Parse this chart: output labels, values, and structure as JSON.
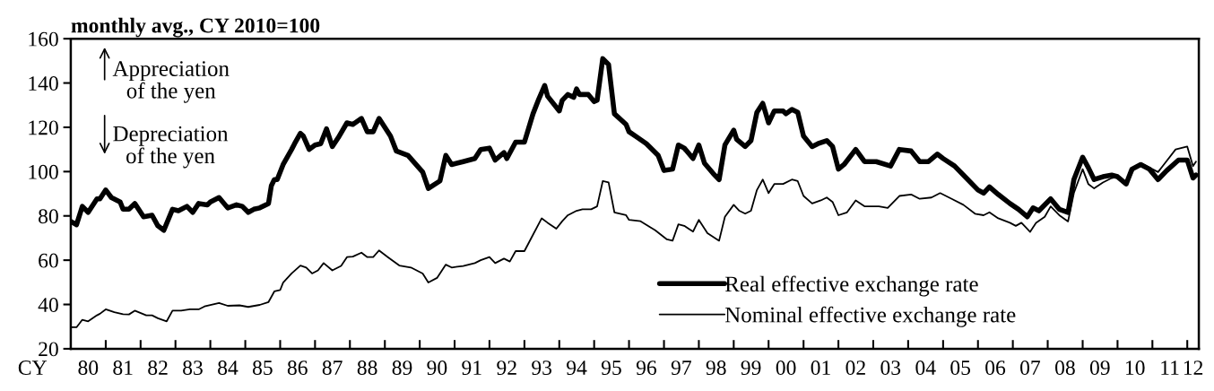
{
  "chart_data": {
    "type": "line",
    "subtitle": "monthly avg., CY 2010=100",
    "annotations": [
      "Appreciation\nof the yen",
      "Depreciation\nof the yen",
      "CY"
    ],
    "xlim": [
      "1980-01",
      "2012-05"
    ],
    "ylim": [
      20,
      160
    ],
    "yticks": [
      20,
      40,
      60,
      80,
      100,
      120,
      140,
      160
    ],
    "xticks": [
      {
        "value": "1981-01",
        "label": null
      },
      {
        "value": "1982-01",
        "label": null
      },
      {
        "value": "1983-01",
        "label": null
      },
      {
        "value": "1984-01",
        "label": null
      },
      {
        "value": "1985-01",
        "label": null
      },
      {
        "value": "1986-01",
        "label": null
      },
      {
        "value": "1987-01",
        "label": null
      },
      {
        "value": "1988-01",
        "label": null
      },
      {
        "value": "1989-01",
        "label": null
      },
      {
        "value": "1990-01",
        "label": null
      },
      {
        "value": "1991-01",
        "label": null
      },
      {
        "value": "1992-01",
        "label": null
      },
      {
        "value": "1993-01",
        "label": null
      },
      {
        "value": "1994-01",
        "label": null
      },
      {
        "value": "1995-01",
        "label": null
      },
      {
        "value": "1996-01",
        "label": null
      },
      {
        "value": "1997-01",
        "label": null
      },
      {
        "value": "1998-01",
        "label": null
      },
      {
        "value": "1999-01",
        "label": null
      },
      {
        "value": "2000-01",
        "label": null
      },
      {
        "value": "2001-01",
        "label": null
      },
      {
        "value": "2002-01",
        "label": null
      },
      {
        "value": "2003-01",
        "label": null
      },
      {
        "value": "2004-01",
        "label": null
      },
      {
        "value": "2005-01",
        "label": null
      },
      {
        "value": "2006-01",
        "label": null
      },
      {
        "value": "2007-01",
        "label": null
      },
      {
        "value": "2008-01",
        "label": null
      },
      {
        "value": "2009-01",
        "label": null
      },
      {
        "value": "2010-01",
        "label": null
      },
      {
        "value": "2011-01",
        "label": null
      },
      {
        "value": "2012-01",
        "label": null
      },
      {
        "value": "1980-07",
        "label": "80"
      },
      {
        "value": "1981-07",
        "label": "81"
      },
      {
        "value": "1982-07",
        "label": "82"
      },
      {
        "value": "1983-07",
        "label": "83"
      },
      {
        "value": "1984-07",
        "label": "84"
      },
      {
        "value": "1985-07",
        "label": "85"
      },
      {
        "value": "1986-07",
        "label": "86"
      },
      {
        "value": "1987-07",
        "label": "87"
      },
      {
        "value": "1988-07",
        "label": "88"
      },
      {
        "value": "1989-07",
        "label": "89"
      },
      {
        "value": "1990-07",
        "label": "90"
      },
      {
        "value": "1991-07",
        "label": "91"
      },
      {
        "value": "1992-07",
        "label": "92"
      },
      {
        "value": "1993-07",
        "label": "93"
      },
      {
        "value": "1994-07",
        "label": "94"
      },
      {
        "value": "1995-07",
        "label": "95"
      },
      {
        "value": "1996-07",
        "label": "96"
      },
      {
        "value": "1997-07",
        "label": "97"
      },
      {
        "value": "1998-07",
        "label": "98"
      },
      {
        "value": "1999-07",
        "label": "99"
      },
      {
        "value": "2000-07",
        "label": "00"
      },
      {
        "value": "2001-07",
        "label": "01"
      },
      {
        "value": "2002-07",
        "label": "02"
      },
      {
        "value": "2003-07",
        "label": "03"
      },
      {
        "value": "2004-07",
        "label": "04"
      },
      {
        "value": "2005-07",
        "label": "05"
      },
      {
        "value": "2006-07",
        "label": "06"
      },
      {
        "value": "2007-07",
        "label": "07"
      },
      {
        "value": "2008-07",
        "label": "08"
      },
      {
        "value": "2009-07",
        "label": "09"
      },
      {
        "value": "2010-07",
        "label": "10"
      },
      {
        "value": "2011-07",
        "label": "11"
      },
      {
        "value": "2012-03",
        "label": "12"
      }
    ],
    "grid": false,
    "legend": "bottom",
    "marker": "none",
    "line_style": "solid",
    "series": [
      {
        "name": "Real effective exchange rate",
        "color": "#000000",
        "x": [
          "1980-01",
          "1980-03",
          "1980-05",
          "1980-07",
          "1980-10",
          "1980-11",
          "1981-01",
          "1981-03",
          "1981-06",
          "1981-07",
          "1981-09",
          "1981-11",
          "1982-02",
          "1982-05",
          "1982-07",
          "1982-09",
          "1982-12",
          "1983-02",
          "1983-05",
          "1983-07",
          "1983-09",
          "1983-12",
          "1984-01",
          "1984-04",
          "1984-07",
          "1984-10",
          "1984-12",
          "1985-02",
          "1985-04",
          "1985-06",
          "1985-09",
          "1985-10",
          "1985-11",
          "1985-12",
          "1986-02",
          "1986-05",
          "1986-06",
          "1986-08",
          "1986-09",
          "1986-11",
          "1987-01",
          "1987-03",
          "1987-05",
          "1987-07",
          "1987-09",
          "1987-12",
          "1988-02",
          "1988-05",
          "1988-07",
          "1988-09",
          "1988-11",
          "1989-03",
          "1989-05",
          "1989-09",
          "1990-02",
          "1990-04",
          "1990-08",
          "1990-10",
          "1990-12",
          "1991-04",
          "1991-08",
          "1991-10",
          "1992-01",
          "1992-03",
          "1992-06",
          "1992-07",
          "1992-10",
          "1993-01",
          "1993-04",
          "1993-06",
          "1993-08",
          "1993-09",
          "1994-01",
          "1994-02",
          "1994-04",
          "1994-06",
          "1994-07",
          "1994-08",
          "1994-11",
          "1995-01",
          "1995-02",
          "1995-04",
          "1995-06",
          "1995-08",
          "1995-12",
          "1996-01",
          "1996-04",
          "1996-07",
          "1996-11",
          "1997-01",
          "1997-04",
          "1997-06",
          "1997-08",
          "1997-11",
          "1998-01",
          "1998-03",
          "1998-06",
          "1998-08",
          "1998-10",
          "1999-01",
          "1999-02",
          "1999-05",
          "1999-07",
          "1999-09",
          "1999-11",
          "2000-01",
          "2000-03",
          "2000-06",
          "2000-07",
          "2000-09",
          "2000-11",
          "2001-01",
          "2001-04",
          "2001-06",
          "2001-09",
          "2001-11",
          "2002-01",
          "2002-03",
          "2002-07",
          "2002-10",
          "2003-02",
          "2003-07",
          "2003-10",
          "2004-02",
          "2004-05",
          "2004-08",
          "2004-11",
          "2005-01",
          "2005-05",
          "2005-09",
          "2006-01",
          "2006-03",
          "2006-05",
          "2006-08",
          "2006-12",
          "2007-03",
          "2007-06",
          "2007-08",
          "2007-10",
          "2008-02",
          "2008-05",
          "2008-08",
          "2008-10",
          "2009-01",
          "2009-03",
          "2009-05",
          "2009-08",
          "2009-11",
          "2010-01",
          "2010-04",
          "2010-06",
          "2010-09",
          "2010-12",
          "2011-03",
          "2011-06",
          "2011-10",
          "2012-01",
          "2012-03",
          "2012-04"
        ],
        "values": [
          77.5,
          76,
          84.3,
          81.6,
          87.7,
          87.7,
          91.7,
          88.3,
          86.3,
          83,
          83,
          85.6,
          79.6,
          80.3,
          75.5,
          73.5,
          83,
          82.3,
          84.3,
          81.6,
          85.6,
          85,
          86.3,
          88.3,
          83.6,
          85,
          84.3,
          81.6,
          83,
          83.6,
          85.6,
          93.7,
          96.4,
          96.4,
          103.2,
          110,
          112.6,
          117.3,
          116,
          110,
          112,
          112.6,
          119.3,
          111.3,
          115.3,
          122,
          121.3,
          124,
          118,
          118,
          124,
          116,
          109.3,
          107.3,
          99.8,
          92.4,
          95.8,
          107.3,
          103.2,
          104.5,
          105.9,
          110,
          110.6,
          105.2,
          108.6,
          105.9,
          113.3,
          113.3,
          126.1,
          132.8,
          138.9,
          134,
          127.4,
          132.2,
          134.8,
          133.5,
          137.3,
          134.8,
          134.8,
          131.6,
          132.2,
          151,
          148.3,
          126.1,
          121.3,
          118,
          115.3,
          112.6,
          107.3,
          100.5,
          101.1,
          112,
          110.6,
          105.9,
          112,
          103.8,
          99.1,
          96.4,
          112,
          118.7,
          114.6,
          111.3,
          114,
          126.8,
          130.8,
          122,
          127.4,
          127.4,
          126.1,
          128.1,
          126.8,
          116,
          111.3,
          112.6,
          114,
          111.3,
          101.1,
          103.2,
          110,
          104.5,
          104.5,
          102.5,
          110,
          109.3,
          104.5,
          104.5,
          107.9,
          105.9,
          102.5,
          97.1,
          91.7,
          90.3,
          93.1,
          89.7,
          85.6,
          83,
          79.6,
          83.6,
          82.3,
          87.7,
          83,
          81.6,
          96.4,
          106.5,
          101.8,
          96.4,
          97.7,
          98.4,
          97.7,
          94.4,
          101.1,
          103.2,
          101.1,
          96.4,
          100.5,
          105.2,
          105.2,
          97.1,
          98.4
        ]
      },
      {
        "name": "Nominal effective exchange rate",
        "color": "#000000",
        "x": [
          "1980-01",
          "1980-03",
          "1980-05",
          "1980-07",
          "1980-10",
          "1980-11",
          "1981-01",
          "1981-04",
          "1981-07",
          "1981-09",
          "1981-11",
          "1982-03",
          "1982-05",
          "1982-07",
          "1982-10",
          "1982-12",
          "1983-03",
          "1983-06",
          "1983-09",
          "1983-11",
          "1984-01",
          "1984-04",
          "1984-07",
          "1984-11",
          "1985-02",
          "1985-06",
          "1985-09",
          "1985-11",
          "1986-01",
          "1986-02",
          "1986-05",
          "1986-08",
          "1986-10",
          "1986-12",
          "1987-02",
          "1987-04",
          "1987-07",
          "1987-10",
          "1987-12",
          "1988-02",
          "1988-05",
          "1988-07",
          "1988-09",
          "1988-11",
          "1989-02",
          "1989-06",
          "1989-10",
          "1990-02",
          "1990-04",
          "1990-07",
          "1990-10",
          "1990-12",
          "1991-04",
          "1991-08",
          "1991-10",
          "1992-01",
          "1992-03",
          "1992-06",
          "1992-08",
          "1992-10",
          "1993-01",
          "1993-04",
          "1993-07",
          "1993-09",
          "1993-12",
          "1994-02",
          "1994-04",
          "1994-07",
          "1994-09",
          "1994-12",
          "1995-02",
          "1995-04",
          "1995-06",
          "1995-08",
          "1995-12",
          "1996-01",
          "1996-05",
          "1996-10",
          "1997-02",
          "1997-04",
          "1997-06",
          "1997-08",
          "1997-11",
          "1998-01",
          "1998-04",
          "1998-08",
          "1998-10",
          "1999-01",
          "1999-03",
          "1999-05",
          "1999-07",
          "1999-09",
          "1999-11",
          "2000-01",
          "2000-03",
          "2000-06",
          "2000-09",
          "2000-11",
          "2001-01",
          "2001-04",
          "2001-07",
          "2001-09",
          "2001-11",
          "2002-01",
          "2002-04",
          "2002-07",
          "2002-10",
          "2003-03",
          "2003-06",
          "2003-10",
          "2004-02",
          "2004-05",
          "2004-09",
          "2004-12",
          "2005-04",
          "2005-08",
          "2005-12",
          "2006-03",
          "2006-05",
          "2006-08",
          "2006-12",
          "2007-02",
          "2007-04",
          "2007-07",
          "2007-09",
          "2007-12",
          "2008-02",
          "2008-05",
          "2008-08",
          "2008-10",
          "2009-01",
          "2009-03",
          "2009-05",
          "2009-08",
          "2009-11",
          "2010-01",
          "2010-04",
          "2010-07",
          "2010-09",
          "2010-12",
          "2011-03",
          "2011-05",
          "2011-09",
          "2012-01",
          "2012-03",
          "2012-04"
        ],
        "values": [
          29.7,
          29.7,
          33.1,
          32.4,
          35.1,
          35.8,
          37.8,
          36.5,
          35.6,
          35.5,
          37.2,
          35.1,
          35.1,
          33.8,
          32.4,
          37.2,
          37.2,
          37.8,
          37.8,
          39.1,
          39.8,
          40.7,
          39.4,
          39.6,
          38.9,
          39.8,
          41.1,
          45.9,
          46.5,
          49.9,
          54,
          57.6,
          56.7,
          54,
          55.4,
          58.7,
          55.4,
          57.4,
          61.4,
          61.6,
          63.4,
          61.4,
          61.4,
          64.4,
          61.4,
          57.6,
          56.7,
          54,
          49.9,
          52,
          58,
          56.7,
          57.4,
          58.7,
          60,
          61.4,
          58.7,
          60.7,
          59.4,
          64.1,
          64.1,
          71.5,
          78.9,
          76.9,
          74.2,
          77.6,
          80.3,
          82.3,
          83,
          83,
          84.3,
          95.7,
          95.1,
          81.6,
          80.3,
          78.2,
          77.6,
          73.5,
          69.4,
          68.8,
          76.2,
          75.5,
          72.9,
          78.2,
          72.2,
          68.8,
          79.6,
          85,
          82.3,
          81,
          82.3,
          91.7,
          96.4,
          90.3,
          94.4,
          94.4,
          96.4,
          95.7,
          89,
          85.6,
          87,
          88.3,
          86.3,
          80.3,
          81.6,
          87,
          84.3,
          84.3,
          83.6,
          89,
          89.7,
          87.7,
          88.3,
          90.3,
          87.7,
          85,
          81,
          80.3,
          81.6,
          78.9,
          76.9,
          75.5,
          76.9,
          72.8,
          76.9,
          79.6,
          84.3,
          80.3,
          77.5,
          90.3,
          101.1,
          94.4,
          92.4,
          95.1,
          97.1,
          97.7,
          94.4,
          101.8,
          103.8,
          101.8,
          99.8,
          103.2,
          110,
          111.3,
          102.5,
          104.5
        ]
      }
    ]
  }
}
